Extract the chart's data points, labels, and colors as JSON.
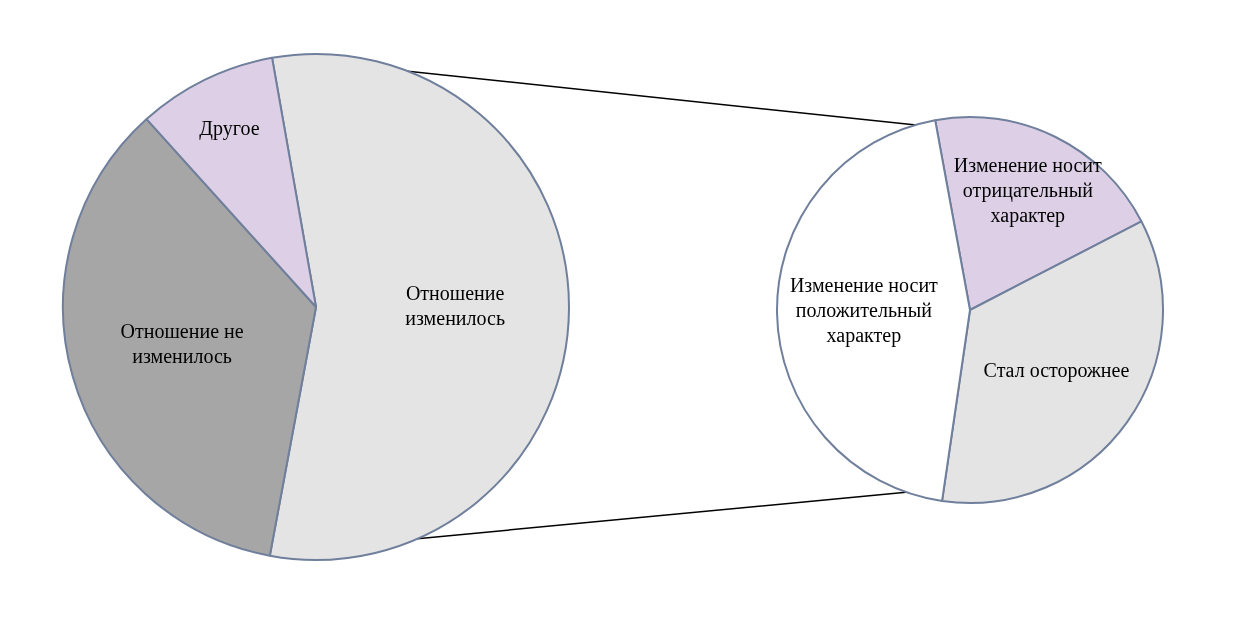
{
  "chart_data": [
    {
      "type": "pie",
      "categories": [
        "Отношение изменилось",
        "Отношение не изменилось",
        "Другое"
      ],
      "values": [
        55.7,
        35.4,
        8.9
      ],
      "colors": [
        "#e4e4e4",
        "#a6a6a6",
        "#ddd0e6"
      ],
      "legend": false
    },
    {
      "type": "pie",
      "categories": [
        "Изменение носит отрицательный характер",
        "Стал осторожнее",
        "Изменение носит положительный характер"
      ],
      "values": [
        20.3,
        34.9,
        44.8
      ],
      "colors": [
        "#ddd0e6",
        "#e4e4e4",
        "#ffffff"
      ],
      "legend": false
    }
  ]
}
